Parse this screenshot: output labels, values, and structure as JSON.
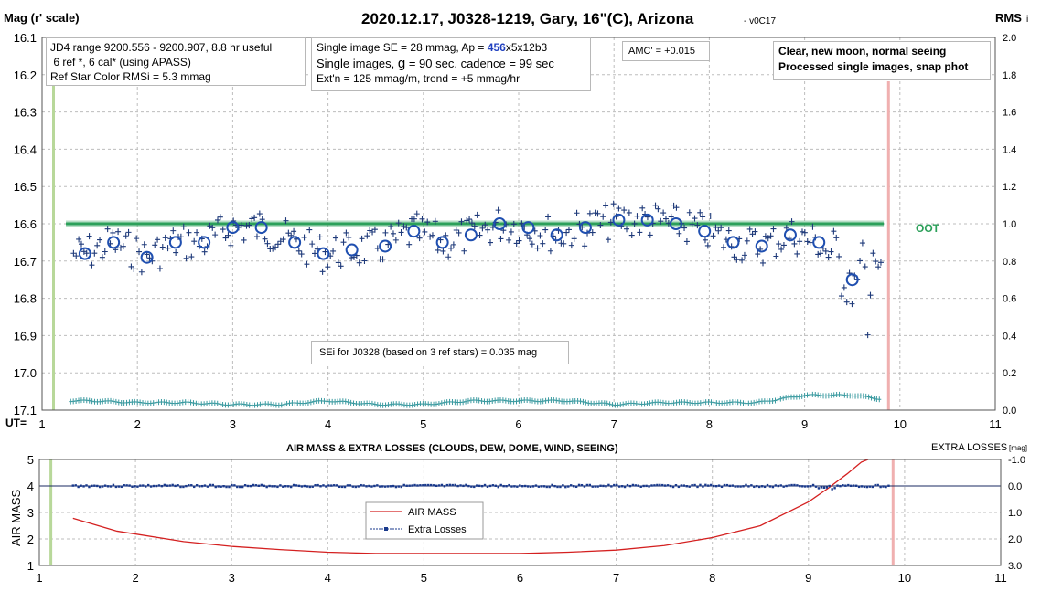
{
  "chart_data": [
    {
      "type": "scatter",
      "title": "2020.12.17, J0328-1219, Gary, 16\"(C), Arizona",
      "version": "- v0C17",
      "ylabel": "Mag (r' scale)",
      "y2label": "RMS",
      "y2label_suffix": "i",
      "xlabel": "UT=",
      "xlim": [
        1,
        11
      ],
      "ylim": [
        16.1,
        17.1
      ],
      "y_inverted": true,
      "y2lim": [
        0,
        2.0
      ],
      "x_ticks": [
        "1",
        "2",
        "3",
        "4",
        "5",
        "6",
        "7",
        "8",
        "9",
        "10",
        "11"
      ],
      "y_ticks": [
        "16.1",
        "16.2",
        "16.3",
        "16.4",
        "16.5",
        "16.6",
        "16.7",
        "16.8",
        "16.9",
        "17.0",
        "17.1"
      ],
      "y2_ticks": [
        "2.0",
        "1.8",
        "1.6",
        "1.4",
        "1.2",
        "1.0",
        "0.8",
        "0.6",
        "0.4",
        "0.2",
        "0.0"
      ],
      "grid": true,
      "oot_level": 16.6,
      "oot_label": "OOT",
      "ingress_marker_x": 1.12,
      "egress_marker_x": 9.88,
      "binned_means": {
        "x": [
          1.45,
          1.75,
          2.1,
          2.4,
          2.7,
          3.0,
          3.3,
          3.65,
          3.95,
          4.25,
          4.6,
          4.9,
          5.2,
          5.5,
          5.8,
          6.1,
          6.4,
          6.7,
          7.05,
          7.35,
          7.65,
          7.95,
          8.25,
          8.55,
          8.85,
          9.15,
          9.5
        ],
        "y": [
          16.68,
          16.65,
          16.69,
          16.65,
          16.65,
          16.61,
          16.61,
          16.65,
          16.68,
          16.67,
          16.66,
          16.62,
          16.65,
          16.63,
          16.6,
          16.61,
          16.63,
          16.61,
          16.59,
          16.59,
          16.6,
          16.62,
          16.65,
          16.66,
          16.63,
          16.65,
          16.75
        ]
      },
      "rms_series": {
        "name": "RMSi",
        "x": [
          1.3,
          1.5,
          2.0,
          2.5,
          3.0,
          3.5,
          4.0,
          4.5,
          5.0,
          5.5,
          6.0,
          6.5,
          7.0,
          7.5,
          8.0,
          8.5,
          9.0,
          9.5,
          9.8
        ],
        "y": [
          0.05,
          0.05,
          0.04,
          0.04,
          0.03,
          0.03,
          0.05,
          0.03,
          0.03,
          0.05,
          0.05,
          0.05,
          0.03,
          0.04,
          0.04,
          0.04,
          0.08,
          0.08,
          0.06
        ]
      }
    },
    {
      "type": "line",
      "title": "AIR MASS & EXTRA LOSSES (CLOUDS, DEW, DOME, WIND, SEEING)",
      "ylabel": "AIR MASS",
      "y2label": "EXTRA LOSSES",
      "y2label_unit": "[mag]",
      "xlim": [
        1,
        11
      ],
      "ylim": [
        1,
        5
      ],
      "y2lim": [
        3.0,
        -1.0
      ],
      "x_ticks": [
        "1",
        "2",
        "3",
        "4",
        "5",
        "6",
        "7",
        "8",
        "9",
        "10",
        "11"
      ],
      "y_ticks": [
        "5",
        "4",
        "3",
        "2",
        "1"
      ],
      "y2_ticks": [
        "-1.0",
        "0.0",
        "1.0",
        "2.0",
        "3.0"
      ],
      "grid": true,
      "legend_position": "center-left",
      "series": [
        {
          "name": "AIR MASS",
          "color": "#d42020",
          "x": [
            1.35,
            1.8,
            2.5,
            3.0,
            3.5,
            4.0,
            4.5,
            5.0,
            5.5,
            6.0,
            6.5,
            7.0,
            7.5,
            8.0,
            8.5,
            9.0,
            9.2,
            9.4,
            9.55,
            9.62
          ],
          "y": [
            2.78,
            2.3,
            1.9,
            1.72,
            1.6,
            1.5,
            1.45,
            1.45,
            1.45,
            1.45,
            1.5,
            1.58,
            1.75,
            2.05,
            2.5,
            3.4,
            3.9,
            4.45,
            4.9,
            5.0
          ]
        },
        {
          "name": "Extra Losses",
          "color": "#1a3a8c",
          "x": [
            1.35,
            9.85
          ],
          "y": [
            0.0,
            0.0
          ]
        }
      ],
      "ingress_marker_x": 1.12,
      "egress_marker_x": 9.88
    }
  ],
  "annotations": {
    "box1": [
      "JD4 range 9200.556 - 9200.907, 8.8 hr useful",
      " 6 ref *, 6 cal* (using APASS)",
      "Ref Star Color RMSi = 5.3 mmag"
    ],
    "box2_line1_pre": "Single image SE = 28 mmag, Ap = ",
    "box2_line1_ap": "456",
    "box2_line1_post": "x5x12b3",
    "box2_line2_pre": "Single images, ",
    "box2_line2_g": "g",
    "box2_line2_post": " = 90 sec, cadence = 99 sec",
    "box2_line3": "Ext'n = 125 mmag/m, trend = +5 mmag/hr",
    "amc": "AMC' = +0.015",
    "box4": [
      "Clear, new moon, normal seeing",
      "Processed single images, snap phot"
    ],
    "sei": "SEi for J0328 (based on 3 ref stars) = 0.035 mag"
  },
  "colors": {
    "points": "#1f3a7a",
    "oot_band": "#2ca05a",
    "rms": "#3a9aa0",
    "ingress": "#b8d89a",
    "egress": "#f0b0b0",
    "ap_highlight": "#2040c0"
  }
}
